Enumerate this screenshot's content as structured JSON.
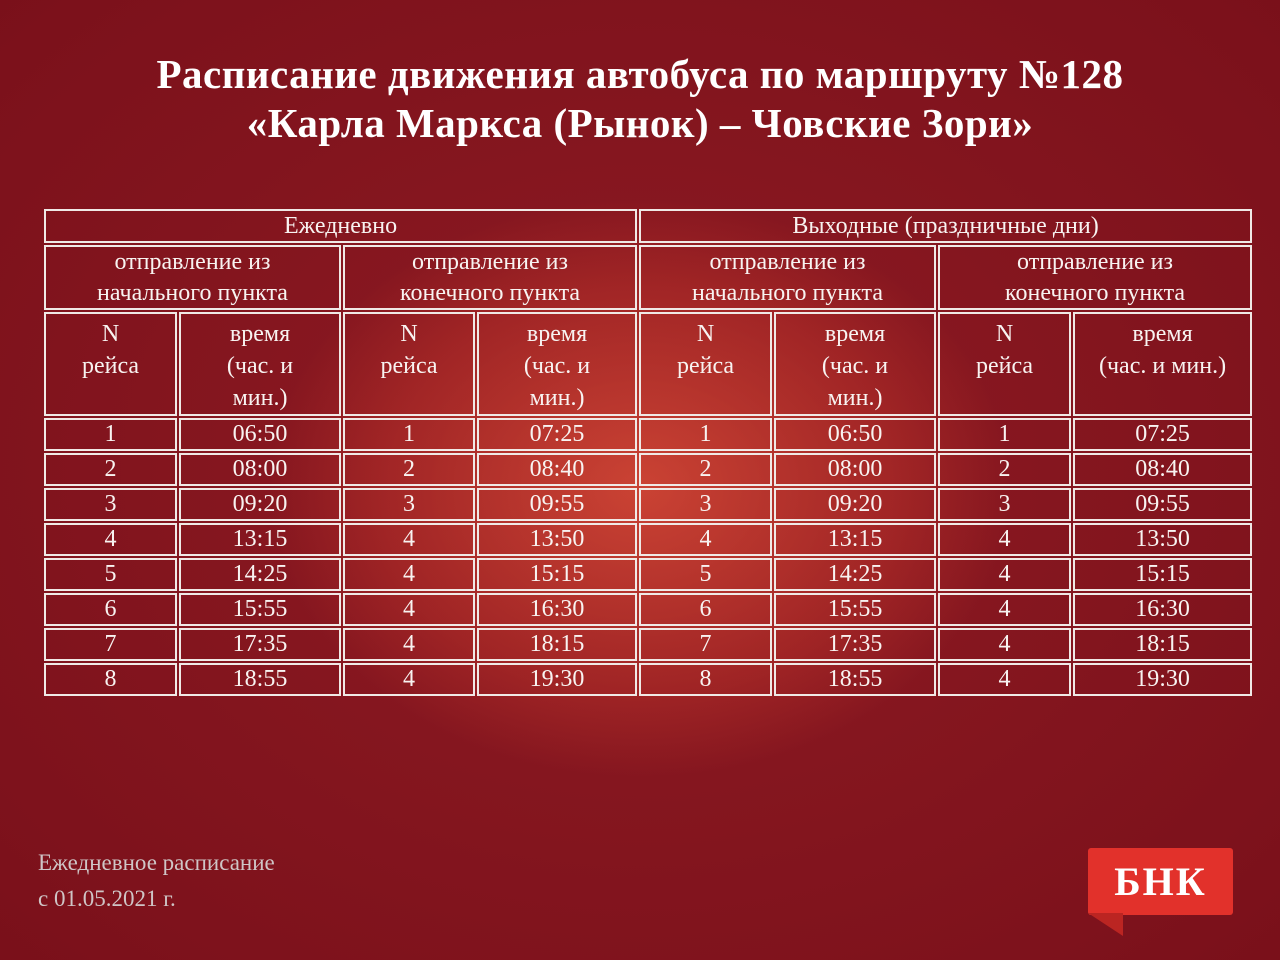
{
  "title": {
    "line1": "Расписание движения автобуса по маршруту №128",
    "line2": "«Карла Маркса (Рынок) – Човские Зори»"
  },
  "table": {
    "day_groups": [
      {
        "label": "Ежедневно"
      },
      {
        "label": "Выходные (праздничные дни)"
      }
    ],
    "direction_headers": [
      "отправление из\nначального пункта",
      "отправление из\nконечного пункта",
      "отправление из\nначального пункта",
      "отправление из\nконечного пункта"
    ],
    "col_headers": [
      "N\nрейса",
      "время\n(час. и\nмин.)",
      "N\nрейса",
      "время\n(час. и\nмин.)",
      "N\nрейса",
      "время\n(час. и\nмин.)",
      "N\nрейса",
      "время\n(час. и мин.)"
    ]
  },
  "chart_data": {
    "type": "table",
    "title": "Расписание движения автобуса по маршруту №128 «Карла Маркса (Рынок) – Човские Зори»",
    "column_groups": [
      "Ежедневно — отправление из начального пункта",
      "Ежедневно — отправление из конечного пункта",
      "Выходные (праздничные дни) — отправление из начального пункта",
      "Выходные (праздничные дни) — отправление из конечного пункта"
    ],
    "columns": [
      "N рейса",
      "время (час. и мин.)",
      "N рейса",
      "время (час. и мин.)",
      "N рейса",
      "время (час. и мин.)",
      "N рейса",
      "время (час. и мин.)"
    ],
    "rows": [
      [
        "1",
        "06:50",
        "1",
        "07:25",
        "1",
        "06:50",
        "1",
        "07:25"
      ],
      [
        "2",
        "08:00",
        "2",
        "08:40",
        "2",
        "08:00",
        "2",
        "08:40"
      ],
      [
        "3",
        "09:20",
        "3",
        "09:55",
        "3",
        "09:20",
        "3",
        "09:55"
      ],
      [
        "4",
        "13:15",
        "4",
        "13:50",
        "4",
        "13:15",
        "4",
        "13:50"
      ],
      [
        "5",
        "14:25",
        "4",
        "15:15",
        "5",
        "14:25",
        "4",
        "15:15"
      ],
      [
        "6",
        "15:55",
        "4",
        "16:30",
        "6",
        "15:55",
        "4",
        "16:30"
      ],
      [
        "7",
        "17:35",
        "4",
        "18:15",
        "7",
        "17:35",
        "4",
        "18:15"
      ],
      [
        "8",
        "18:55",
        "4",
        "19:30",
        "8",
        "18:55",
        "4",
        "19:30"
      ]
    ],
    "note": "Ежедневное расписание с 01.05.2021 г."
  },
  "footer": {
    "line1": "Ежедневное расписание",
    "line2": "с 01.05.2021 г."
  },
  "logo": {
    "text": "БНК"
  },
  "colors": {
    "background": "#7a101b",
    "glow": "#c33a30",
    "table_border": "#f0e9e6",
    "text": "#ffffff",
    "footer_text": "#cfc5c6",
    "logo_red": "#e2312b",
    "logo_tail": "#bb2522"
  }
}
